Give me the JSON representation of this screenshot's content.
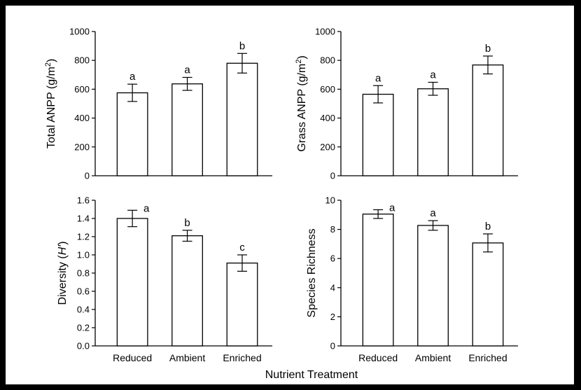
{
  "chart_data": [
    {
      "type": "bar",
      "categories": [
        "Reduced",
        "Ambient",
        "Enriched"
      ],
      "values": [
        575,
        637,
        780
      ],
      "errors": [
        60,
        45,
        68
      ],
      "significance": [
        "a",
        "a",
        "b"
      ],
      "ylabel": "Total ANPP (g/m²)",
      "ylim": [
        0,
        1000
      ],
      "yticks": [
        "0",
        "200",
        "400",
        "600",
        "800",
        "1000"
      ],
      "ytick_values": [
        0,
        200,
        400,
        600,
        800,
        1000
      ]
    },
    {
      "type": "bar",
      "categories": [
        "Reduced",
        "Ambient",
        "Enriched"
      ],
      "values": [
        565,
        603,
        768
      ],
      "errors": [
        60,
        45,
        62
      ],
      "significance": [
        "a",
        "a",
        "b"
      ],
      "ylabel": "Grass ANPP (g/m²)",
      "ylim": [
        0,
        1000
      ],
      "yticks": [
        "0",
        "200",
        "400",
        "600",
        "800",
        "1000"
      ],
      "ytick_values": [
        0,
        200,
        400,
        600,
        800,
        1000
      ]
    },
    {
      "type": "bar",
      "categories": [
        "Reduced",
        "Ambient",
        "Enriched"
      ],
      "values": [
        1.4,
        1.21,
        0.91
      ],
      "errors": [
        0.09,
        0.06,
        0.09
      ],
      "significance": [
        "a",
        "b",
        "c"
      ],
      "ylabel": "Diversity (H′)",
      "ylim": [
        0,
        1.6
      ],
      "yticks": [
        "0.0",
        "0.2",
        "0.4",
        "0.6",
        "0.8",
        "1.0",
        "1.2",
        "1.4",
        "1.6"
      ],
      "ytick_values": [
        0,
        0.2,
        0.4,
        0.6,
        0.8,
        1.0,
        1.2,
        1.4,
        1.6
      ]
    },
    {
      "type": "bar",
      "categories": [
        "Reduced",
        "Ambient",
        "Enriched"
      ],
      "values": [
        9.05,
        8.27,
        7.07
      ],
      "errors": [
        0.3,
        0.33,
        0.62
      ],
      "significance": [
        "a",
        "a",
        "b"
      ],
      "ylabel": "Species Richness",
      "ylim": [
        0,
        10
      ],
      "yticks": [
        "0",
        "2",
        "4",
        "6",
        "8",
        "10"
      ],
      "ytick_values": [
        0,
        2,
        4,
        6,
        8,
        10
      ]
    }
  ],
  "xlabel": "Nutrient Treatment"
}
